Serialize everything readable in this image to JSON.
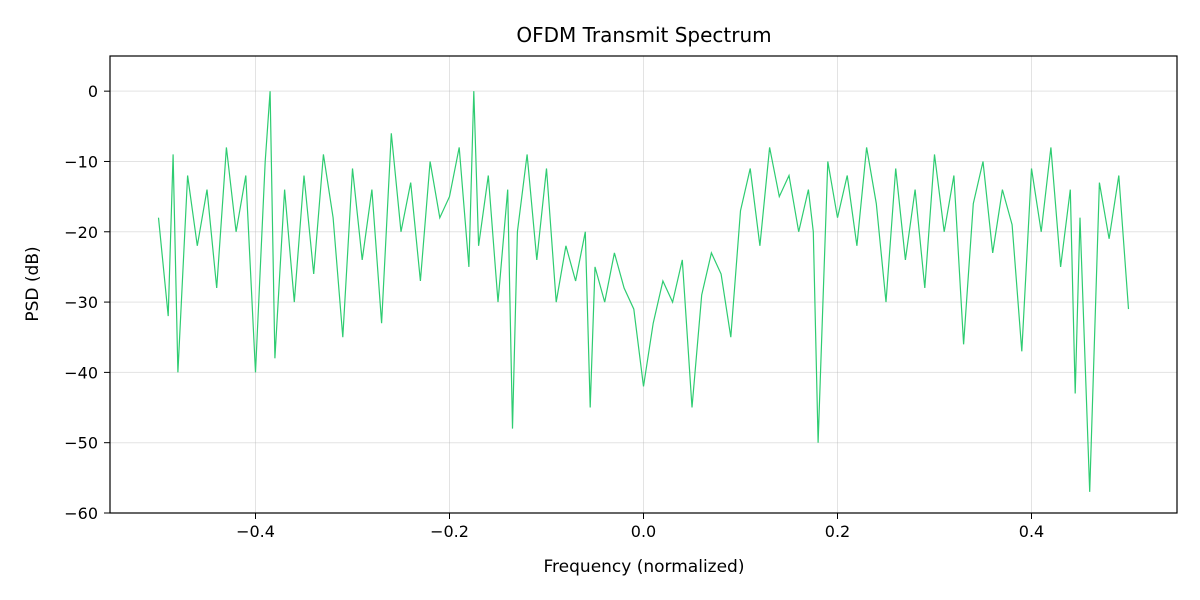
{
  "chart_data": {
    "type": "line",
    "title": "OFDM Transmit Spectrum",
    "xlabel": "Frequency (normalized)",
    "ylabel": "PSD (dB)",
    "xlim": [
      -0.55,
      0.55
    ],
    "ylim": [
      -60,
      5
    ],
    "xticks": [
      -0.4,
      -0.2,
      0.0,
      0.2,
      0.4
    ],
    "xtick_labels": [
      "−0.4",
      "−0.2",
      "0.0",
      "0.2",
      "0.4"
    ],
    "yticks": [
      0,
      -10,
      -20,
      -30,
      -40,
      -50,
      -60
    ],
    "ytick_labels": [
      "0",
      "−10",
      "−20",
      "−30",
      "−40",
      "−50",
      "−60"
    ],
    "grid": true,
    "line_color": "#2ecc71",
    "series": [
      {
        "x": [
          -0.5,
          -0.49,
          -0.485,
          -0.48,
          -0.47,
          -0.46,
          -0.45,
          -0.44,
          -0.43,
          -0.42,
          -0.41,
          -0.4,
          -0.39,
          -0.385,
          -0.38,
          -0.37,
          -0.36,
          -0.35,
          -0.34,
          -0.33,
          -0.32,
          -0.31,
          -0.3,
          -0.29,
          -0.28,
          -0.27,
          -0.26,
          -0.25,
          -0.24,
          -0.23,
          -0.22,
          -0.21,
          -0.2,
          -0.19,
          -0.18,
          -0.175,
          -0.17,
          -0.16,
          -0.15,
          -0.14,
          -0.135,
          -0.13,
          -0.12,
          -0.11,
          -0.1,
          -0.09,
          -0.08,
          -0.07,
          -0.06,
          -0.055,
          -0.05,
          -0.04,
          -0.03,
          -0.02,
          -0.01,
          0.0,
          0.01,
          0.02,
          0.03,
          0.04,
          0.05,
          0.06,
          0.07,
          0.08,
          0.09,
          0.1,
          0.11,
          0.12,
          0.13,
          0.14,
          0.15,
          0.16,
          0.17,
          0.175,
          0.18,
          0.19,
          0.2,
          0.21,
          0.22,
          0.23,
          0.24,
          0.25,
          0.26,
          0.27,
          0.28,
          0.29,
          0.3,
          0.31,
          0.32,
          0.33,
          0.34,
          0.35,
          0.36,
          0.37,
          0.38,
          0.39,
          0.4,
          0.41,
          0.42,
          0.43,
          0.44,
          0.445,
          0.45,
          0.46,
          0.47,
          0.48,
          0.49,
          0.5
        ],
        "y": [
          -18,
          -32,
          -9,
          -40,
          -12,
          -22,
          -14,
          -28,
          -8,
          -20,
          -12,
          -40,
          -10,
          0,
          -38,
          -14,
          -30,
          -12,
          -26,
          -9,
          -18,
          -35,
          -11,
          -24,
          -14,
          -33,
          -6,
          -20,
          -13,
          -27,
          -10,
          -18,
          -15,
          -8,
          -25,
          0,
          -22,
          -12,
          -30,
          -14,
          -48,
          -20,
          -9,
          -24,
          -11,
          -30,
          -22,
          -27,
          -20,
          -45,
          -25,
          -30,
          -23,
          -28,
          -31,
          -42,
          -33,
          -27,
          -30,
          -24,
          -45,
          -29,
          -23,
          -26,
          -35,
          -17,
          -11,
          -22,
          -8,
          -15,
          -12,
          -20,
          -14,
          -20,
          -50,
          -10,
          -18,
          -12,
          -22,
          -8,
          -16,
          -30,
          -11,
          -24,
          -14,
          -28,
          -9,
          -20,
          -12,
          -36,
          -16,
          -10,
          -23,
          -14,
          -19,
          -37,
          -11,
          -20,
          -8,
          -25,
          -14,
          -43,
          -18,
          -57,
          -13,
          -21,
          -12,
          -31
        ]
      }
    ]
  }
}
